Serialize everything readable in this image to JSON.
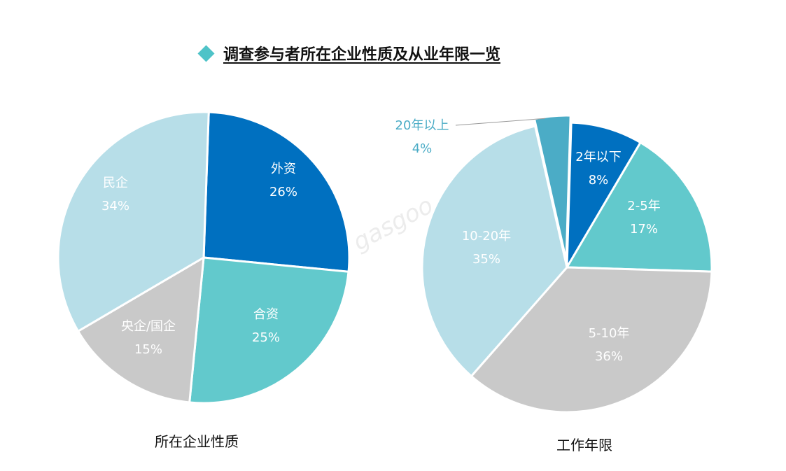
{
  "title": "调查参与者所在企业性质及从业年限一览",
  "watermark": "gasgoo",
  "chart_data": [
    {
      "type": "pie",
      "title": "所在企业性质",
      "slices": [
        {
          "label": "外资",
          "value": 26,
          "value_label": "26%",
          "color": "#0070C0"
        },
        {
          "label": "合资",
          "value": 25,
          "value_label": "25%",
          "color": "#62C9CC"
        },
        {
          "label": "央企/国企",
          "value": 15,
          "value_label": "15%",
          "color": "#C9C9C9"
        },
        {
          "label": "民企",
          "value": 34,
          "value_label": "34%",
          "color": "#B7DEE8"
        }
      ]
    },
    {
      "type": "pie",
      "title": "工作年限",
      "slices": [
        {
          "label": "2年以下",
          "value": 8,
          "value_label": "8%",
          "color": "#0070C0"
        },
        {
          "label": "2-5年",
          "value": 17,
          "value_label": "17%",
          "color": "#62C9CC"
        },
        {
          "label": "5-10年",
          "value": 36,
          "value_label": "36%",
          "color": "#C9C9C9"
        },
        {
          "label": "10-20年",
          "value": 35,
          "value_label": "35%",
          "color": "#B7DEE8"
        },
        {
          "label": "20年以上",
          "value": 4,
          "value_label": "4%",
          "color": "#4BACC6"
        }
      ]
    }
  ]
}
